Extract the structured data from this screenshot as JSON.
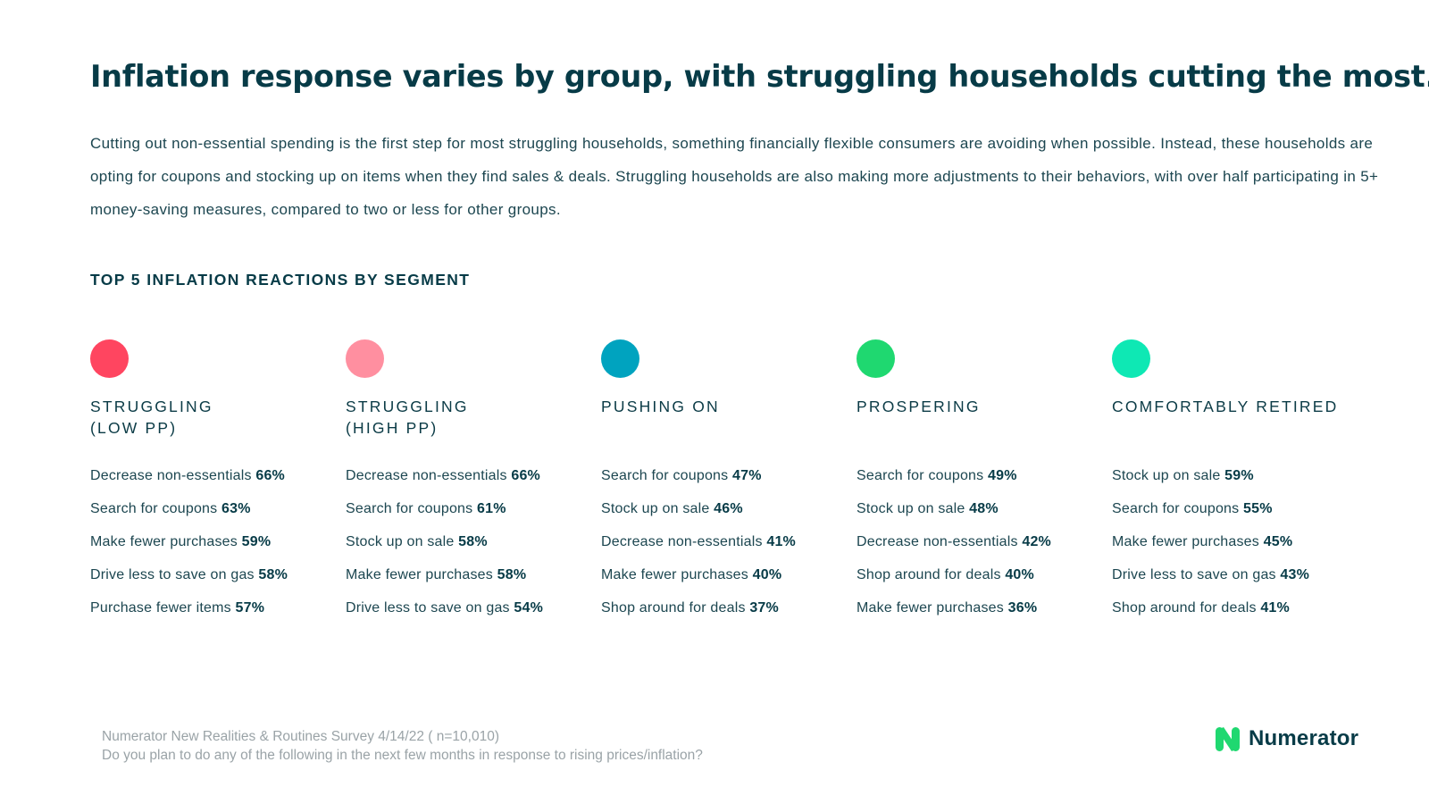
{
  "title": "Inflation response varies by group, with struggling households cutting the most.",
  "intro": "Cutting out non-essential spending is the first step for most struggling households, something financially flexible consumers are avoiding when possible. Instead, these households are opting for coupons and stocking up on items when they find sales & deals. Struggling households are also making more adjustments to their behaviors, with over half participating in 5+ money-saving measures, compared to two or less for other groups.",
  "section_title": "TOP 5 INFLATION REACTIONS BY SEGMENT",
  "segments": [
    {
      "color": "#ff4560",
      "name_line1": "STRUGGLING",
      "name_line2": "(LOW PP)",
      "reactions": [
        {
          "label": "Decrease non-essentials",
          "value": "66%"
        },
        {
          "label": "Search for coupons",
          "value": "63%"
        },
        {
          "label": "Make fewer purchases",
          "value": "59%"
        },
        {
          "label": "Drive less to save on gas",
          "value": "58%"
        },
        {
          "label": "Purchase fewer items",
          "value": "57%"
        }
      ]
    },
    {
      "color": "#ff8fa0",
      "name_line1": "STRUGGLING",
      "name_line2": "(HIGH PP)",
      "reactions": [
        {
          "label": "Decrease non-essentials",
          "value": "66%"
        },
        {
          "label": "Search for coupons",
          "value": "61%"
        },
        {
          "label": "Stock up on sale",
          "value": "58%"
        },
        {
          "label": "Make fewer purchases",
          "value": "58%"
        },
        {
          "label": "Drive less to save on gas",
          "value": "54%"
        }
      ]
    },
    {
      "color": "#00a3bf",
      "name_line1": "PUSHING ON",
      "name_line2": "",
      "reactions": [
        {
          "label": "Search for coupons",
          "value": "47%"
        },
        {
          "label": "Stock up on sale",
          "value": "46%"
        },
        {
          "label": "Decrease non-essentials",
          "value": "41%"
        },
        {
          "label": "Make fewer purchases",
          "value": "40%"
        },
        {
          "label": "Shop around for deals",
          "value": "37%"
        }
      ]
    },
    {
      "color": "#1fd870",
      "name_line1": "PROSPERING",
      "name_line2": "",
      "reactions": [
        {
          "label": "Search for coupons",
          "value": "49%"
        },
        {
          "label": "Stock up on sale",
          "value": "48%"
        },
        {
          "label": "Decrease non-essentials",
          "value": "42%"
        },
        {
          "label": "Shop around for deals",
          "value": "40%"
        },
        {
          "label": "Make fewer purchases",
          "value": "36%"
        }
      ]
    },
    {
      "color": "#0ee8b4",
      "name_line1": "COMFORTABLY RETIRED",
      "name_line2": "",
      "reactions": [
        {
          "label": "Stock up on sale",
          "value": "59%"
        },
        {
          "label": "Search for coupons",
          "value": "55%"
        },
        {
          "label": "Make fewer purchases",
          "value": "45%"
        },
        {
          "label": "Drive less to save on gas",
          "value": "43%"
        },
        {
          "label": "Shop around for deals",
          "value": "41%"
        }
      ]
    }
  ],
  "footnote": {
    "line1": "Numerator New Realities & Routines Survey 4/14/22 ( n=10,010)",
    "line2": "Do you plan to do any of the following in the next few months in response to rising prices/inflation?"
  },
  "logo": {
    "text": "Numerator",
    "color": "#1fd870"
  }
}
